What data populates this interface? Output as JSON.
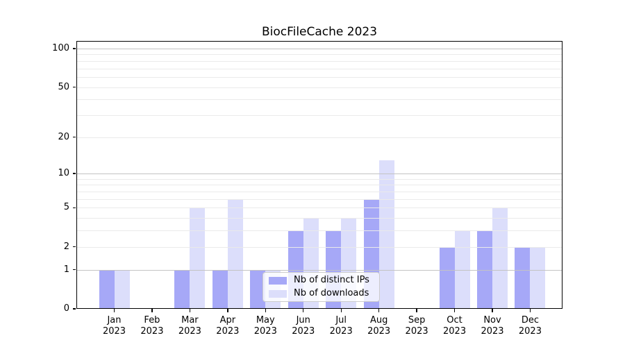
{
  "chart_data": {
    "type": "bar",
    "title": "BiocFileCache 2023",
    "year_label": "2023",
    "categories": [
      "Jan",
      "Feb",
      "Mar",
      "Apr",
      "May",
      "Jun",
      "Jul",
      "Aug",
      "Sep",
      "Oct",
      "Nov",
      "Dec"
    ],
    "series": [
      {
        "name": "Nb of distinct IPs",
        "color": "#a6a8f7",
        "values": [
          1,
          0,
          1,
          1,
          1,
          3,
          3,
          6,
          0,
          2,
          3,
          2
        ]
      },
      {
        "name": "Nb of downloads",
        "color": "#dcdefb",
        "values": [
          1,
          0,
          5,
          6,
          1,
          4,
          4,
          13,
          0,
          3,
          5,
          2
        ]
      }
    ],
    "y_axis": {
      "scale": "log1p",
      "ticks": [
        0,
        1,
        2,
        5,
        10,
        20,
        50,
        100
      ],
      "major_gridlines": [
        1,
        10,
        100
      ],
      "minor_gridlines": [
        2,
        3,
        4,
        5,
        6,
        7,
        8,
        9,
        20,
        30,
        40,
        50,
        60,
        70,
        80,
        90
      ],
      "range": [
        0,
        115
      ]
    },
    "x_axis": {
      "tick_label_second_line": "2023"
    },
    "legend": {
      "position": "lower center-left",
      "entries": [
        "Nb of distinct IPs",
        "Nb of downloads"
      ]
    },
    "grid": true,
    "colors": {
      "major_grid": "#c3c3c3",
      "minor_grid": "#eaeaea",
      "axis": "#000000",
      "background": "#ffffff"
    }
  }
}
